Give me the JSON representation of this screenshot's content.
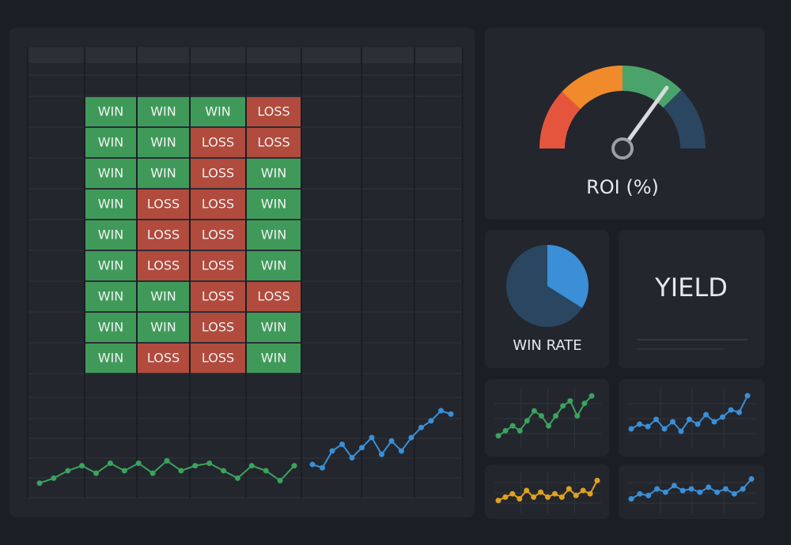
{
  "table": {
    "rows": [
      [
        "WIN",
        "WIN",
        "WIN",
        "LOSS"
      ],
      [
        "WIN",
        "WIN",
        "LOSS",
        "LOSS"
      ],
      [
        "WIN",
        "WIN",
        "LOSS",
        "WIN"
      ],
      [
        "WIN",
        "LOSS",
        "LOSS",
        "WIN"
      ],
      [
        "WIN",
        "LOSS",
        "LOSS",
        "WIN"
      ],
      [
        "WIN",
        "LOSS",
        "LOSS",
        "WIN"
      ],
      [
        "WIN",
        "WIN",
        "LOSS",
        "LOSS"
      ],
      [
        "WIN",
        "WIN",
        "LOSS",
        "WIN"
      ],
      [
        "WIN",
        "LOSS",
        "LOSS",
        "WIN"
      ]
    ],
    "colors": {
      "WIN": "#3f9a5a",
      "LOSS": "#b04b3e"
    }
  },
  "gauge": {
    "label": "ROI (%)",
    "value": 70,
    "lim": [
      0,
      100
    ]
  },
  "win_rate": {
    "label": "WIN RATE",
    "value": 34,
    "color": "#3a8fd6"
  },
  "yield": {
    "label": "YIELD"
  },
  "sparklines": [
    {
      "color": "#3aa35e",
      "ylim": [
        0,
        10
      ],
      "values": [
        1,
        2,
        3.5,
        4.5,
        3,
        5,
        3.5,
        5,
        3,
        5.5,
        3.5,
        4.5,
        5,
        3.5,
        2,
        4.5,
        3.5,
        1.5,
        4.5
      ]
    },
    {
      "color": "#3a8fd6",
      "ylim": [
        0,
        10
      ],
      "values": [
        2,
        1.5,
        4,
        5,
        3,
        4.5,
        6,
        3.5,
        5.5,
        4,
        6,
        7.5,
        8.5,
        10,
        9.5
      ]
    },
    {
      "color": "#3aa35e",
      "ylim": [
        0,
        10
      ],
      "values": [
        1,
        2,
        3,
        2,
        4,
        6,
        5,
        3,
        5,
        7,
        8,
        5,
        7.5,
        9
      ]
    },
    {
      "color": "#3a8fd6",
      "ylim": [
        0,
        10
      ],
      "values": [
        2,
        3,
        2.5,
        4,
        2,
        3.5,
        1.5,
        4,
        3,
        5,
        3.5,
        4.5,
        6,
        5.5,
        9
      ]
    },
    {
      "color": "#e0a020",
      "ylim": [
        0,
        10
      ],
      "values": [
        2,
        3,
        4,
        2.5,
        5,
        3,
        4.5,
        3,
        4,
        3,
        5.5,
        3.5,
        5,
        4,
        8
      ]
    },
    {
      "color": "#3a8fd6",
      "ylim": [
        0,
        10
      ],
      "values": [
        2,
        3.5,
        3,
        5,
        4,
        6,
        4.5,
        5,
        4,
        5.5,
        4,
        5,
        3.5,
        5,
        8
      ]
    }
  ]
}
